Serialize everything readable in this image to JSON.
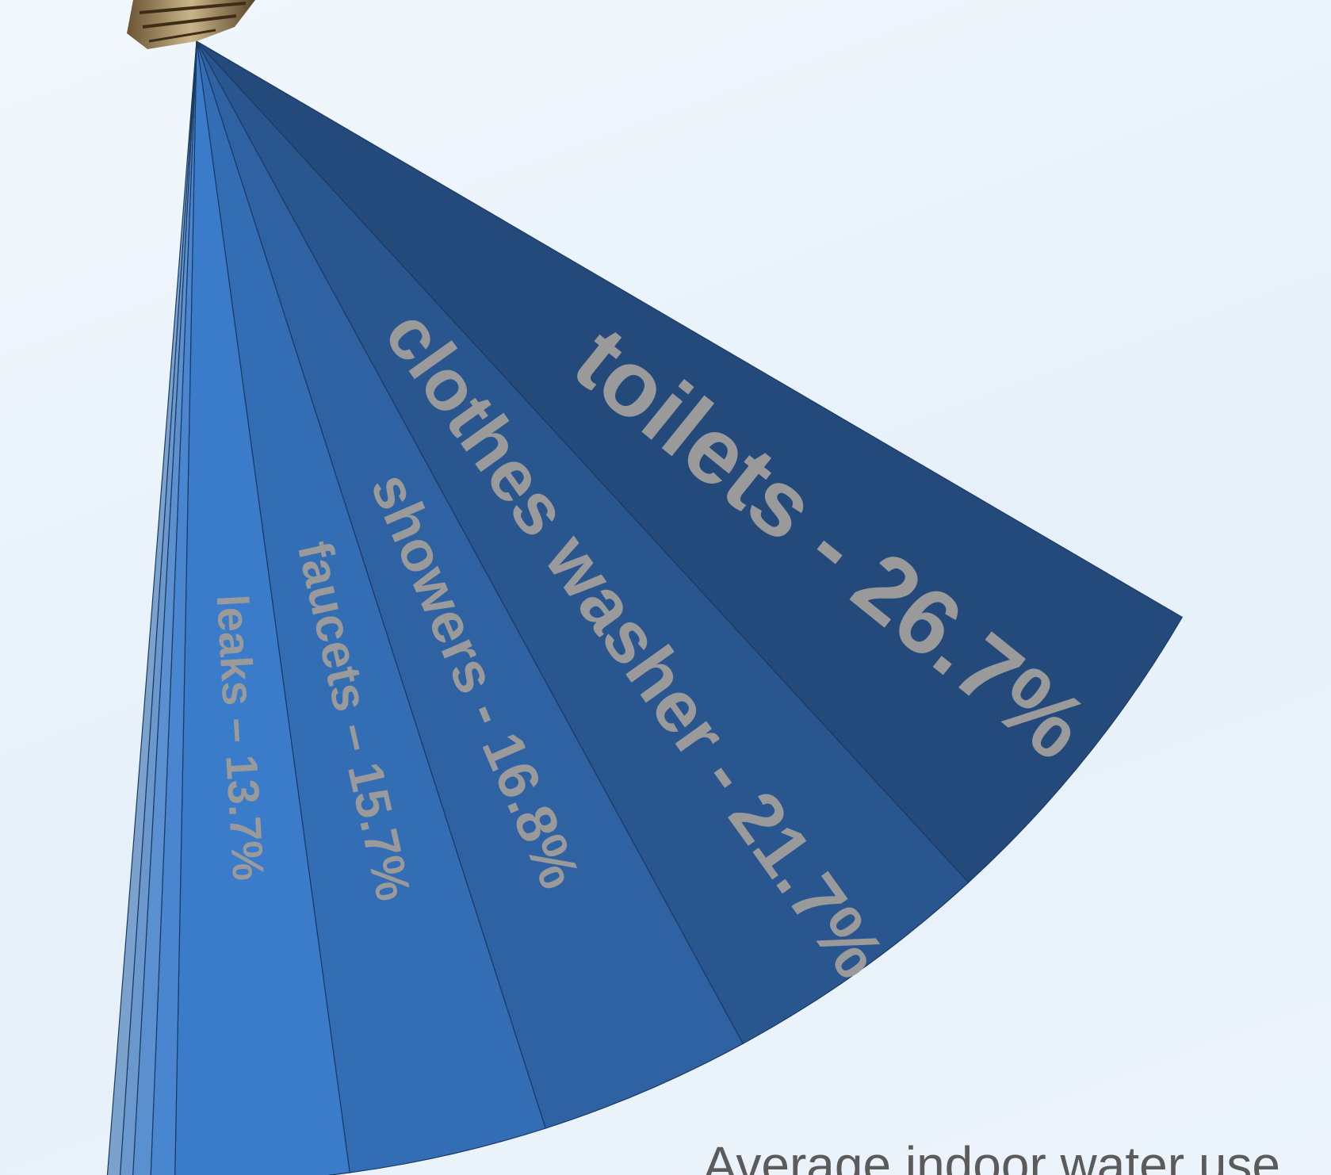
{
  "chart_data": {
    "type": "pie",
    "title": "Average indoor water use",
    "slices": [
      {
        "label": "toilets - 26.7%",
        "category": "toilets",
        "value": 26.7,
        "color": "#244a7c"
      },
      {
        "label": "clothes washer - 21.7%",
        "category": "clothes washer",
        "value": 21.7,
        "color": "#2a5690"
      },
      {
        "label": "showers - 16.8%",
        "category": "showers",
        "value": 16.8,
        "color": "#2f62a2"
      },
      {
        "label": "faucets – 15.7%",
        "category": "faucets",
        "value": 15.7,
        "color": "#336db4"
      },
      {
        "label": "leaks – 13.7%",
        "category": "leaks",
        "value": 13.7,
        "color": "#3a7cc9"
      },
      {
        "label": "",
        "category": "",
        "value": 1.9,
        "color": "#4a86cf"
      },
      {
        "label": "",
        "category": "",
        "value": 1.4,
        "color": "#5a90cf"
      },
      {
        "label": "",
        "category": "",
        "value": 1.0,
        "color": "#6a98cc"
      },
      {
        "label": "",
        "category": "",
        "value": 1.0,
        "color": "#7aa2cc"
      }
    ]
  }
}
